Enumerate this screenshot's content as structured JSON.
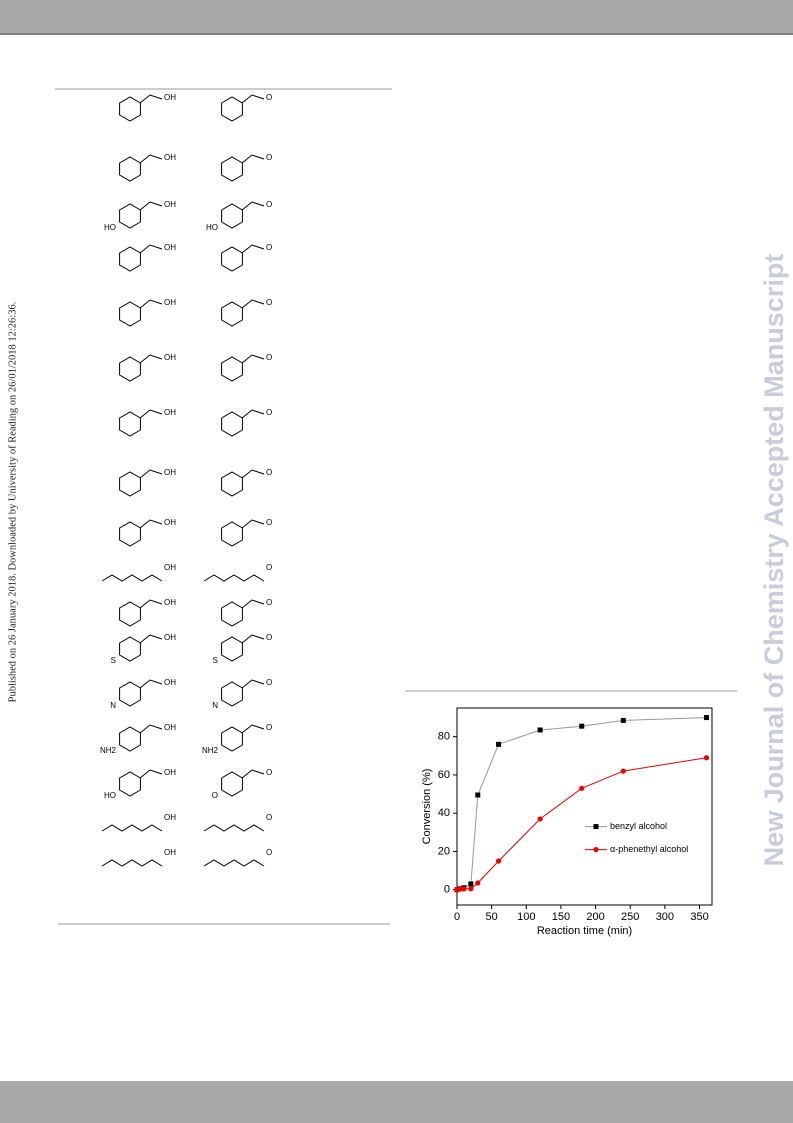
{
  "sidebar_left": "Published on 26 January 2018. Downloaded by University of Reading on 26/01/2018 12:26:36.",
  "sidebar_right": "New Journal of Chemistry Accepted Manuscript",
  "structures": [
    {
      "substrate": [
        "OH"
      ],
      "product": [
        "O"
      ]
    },
    {
      "substrate": [
        "OH"
      ],
      "product": [
        "O"
      ]
    },
    {
      "substrate": [
        "OH",
        "HO"
      ],
      "product": [
        "O",
        "HO"
      ]
    },
    {
      "substrate": [
        "OH"
      ],
      "product": [
        "O"
      ]
    },
    {
      "substrate": [
        "OH"
      ],
      "product": [
        "O"
      ]
    },
    {
      "substrate": [
        "OH"
      ],
      "product": [
        "O"
      ]
    },
    {
      "substrate": [
        "OH"
      ],
      "product": [
        "O"
      ]
    },
    {
      "substrate": [
        "OH"
      ],
      "product": [
        "O"
      ]
    },
    {
      "substrate": [
        "OH"
      ],
      "product": [
        "O"
      ]
    },
    {
      "substrate": [
        "OH"
      ],
      "product": [
        "O"
      ]
    },
    {
      "substrate": [
        "OH"
      ],
      "product": [
        "O"
      ]
    },
    {
      "substrate": [
        "OH",
        "S"
      ],
      "product": [
        "O",
        "S"
      ]
    },
    {
      "substrate": [
        "OH",
        "N"
      ],
      "product": [
        "O",
        "N"
      ]
    },
    {
      "substrate": [
        "OH",
        "NH2"
      ],
      "product": [
        "O",
        "NH2"
      ]
    },
    {
      "substrate": [
        "OH",
        "HO"
      ],
      "product": [
        "O",
        "O"
      ]
    },
    {
      "substrate": [
        "OH"
      ],
      "product": [
        "O"
      ]
    },
    {
      "substrate": [
        "OH"
      ],
      "product": [
        "O"
      ]
    }
  ],
  "chart_data": {
    "type": "line",
    "x_label": "Reaction time (min)",
    "y_label": "Conversion (%)",
    "x": [
      0,
      5,
      10,
      20,
      30,
      60,
      120,
      180,
      240,
      360
    ],
    "series": [
      {
        "name": "benzyl alcohol",
        "color": "#000000",
        "values": [
          0,
          0.5,
          1,
          3,
          49.5,
          76,
          83.5,
          85.5,
          88.5,
          90
        ]
      },
      {
        "name": "α-phenethyl alcohol",
        "color": "#e60000",
        "values": [
          0,
          0.5,
          0.5,
          0.5,
          3.5,
          15,
          37,
          53,
          62,
          69
        ]
      }
    ],
    "xlim": [
      0,
      368
    ],
    "ylim": [
      -8,
      95
    ],
    "xticks": [
      0,
      50,
      100,
      150,
      200,
      250,
      300,
      350
    ],
    "yticks": [
      0,
      20,
      40,
      60,
      80
    ],
    "legend": "right"
  }
}
